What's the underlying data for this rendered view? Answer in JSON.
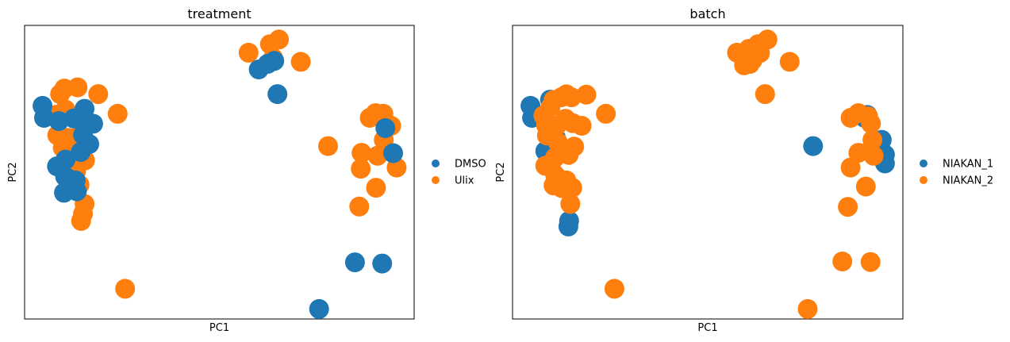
{
  "charts": [
    {
      "title": "treatment",
      "xlabel": "PC1",
      "ylabel": "PC2",
      "legend": [
        {
          "label": "DMSO",
          "color": "#1f77b4"
        },
        {
          "label": "Ulix",
          "color": "#ff7f0e"
        }
      ]
    },
    {
      "title": "batch",
      "xlabel": "PC1",
      "ylabel": "PC2",
      "legend": [
        {
          "label": "NIAKAN_1",
          "color": "#1f77b4"
        },
        {
          "label": "NIAKAN_2",
          "color": "#ff7f0e"
        }
      ]
    }
  ],
  "chart_data": [
    {
      "type": "scatter",
      "title": "treatment",
      "xlabel": "PC1",
      "ylabel": "PC2",
      "xticks": "none",
      "yticks": "none",
      "grid": false,
      "legend_position": "right",
      "xlim": [
        0,
        100
      ],
      "ylim": [
        0,
        100
      ],
      "series": [
        {
          "name": "Ulix",
          "color": "#ff7f0e",
          "points": [
            [
              57.5,
              90.7
            ],
            [
              63.0,
              93.6
            ],
            [
              65.3,
              95.2
            ],
            [
              70.9,
              87.6
            ],
            [
              63.8,
              88.9
            ],
            [
              9.1,
              76.6
            ],
            [
              10.2,
              78.5
            ],
            [
              13.6,
              78.9
            ],
            [
              18.9,
              76.6
            ],
            [
              23.9,
              69.9
            ],
            [
              8.2,
              69.6
            ],
            [
              10.5,
              71.3
            ],
            [
              14.3,
              69.0
            ],
            [
              8.4,
              62.6
            ],
            [
              11.1,
              61.7
            ],
            [
              13.8,
              62.1
            ],
            [
              9.8,
              58.3
            ],
            [
              12.7,
              55.0
            ],
            [
              15.5,
              54.0
            ],
            [
              13.2,
              50.2
            ],
            [
              11.8,
              47.1
            ],
            [
              14.1,
              45.7
            ],
            [
              15.4,
              39.2
            ],
            [
              15.0,
              35.8
            ],
            [
              14.5,
              33.4
            ],
            [
              25.8,
              10.3
            ],
            [
              77.9,
              58.9
            ],
            [
              88.6,
              68.5
            ],
            [
              90.1,
              70.1
            ],
            [
              92.1,
              69.9
            ],
            [
              94.1,
              65.8
            ],
            [
              92.2,
              61.0
            ],
            [
              86.5,
              56.6
            ],
            [
              86.3,
              51.2
            ],
            [
              90.2,
              44.7
            ],
            [
              90.6,
              55.6
            ],
            [
              95.5,
              51.6
            ],
            [
              85.9,
              38.3
            ]
          ]
        },
        {
          "name": "DMSO",
          "color": "#1f77b4",
          "points": [
            [
              60.1,
              85.0
            ],
            [
              62.4,
              86.9
            ],
            [
              64.1,
              87.9
            ],
            [
              64.9,
              76.6
            ],
            [
              4.6,
              72.6
            ],
            [
              5.0,
              68.5
            ],
            [
              8.8,
              67.4
            ],
            [
              12.6,
              68.3
            ],
            [
              15.4,
              71.6
            ],
            [
              16.0,
              66.0
            ],
            [
              17.6,
              66.5
            ],
            [
              15.0,
              62.7
            ],
            [
              16.6,
              59.6
            ],
            [
              14.4,
              56.9
            ],
            [
              8.3,
              52.0
            ],
            [
              10.4,
              48.5
            ],
            [
              13.1,
              47.2
            ],
            [
              10.5,
              54.3
            ],
            [
              11.0,
              48.0
            ],
            [
              13.4,
              43.5
            ],
            [
              10.1,
              43.0
            ],
            [
              92.6,
              65.0
            ],
            [
              94.6,
              56.5
            ],
            [
              84.8,
              19.3
            ],
            [
              91.8,
              18.9
            ],
            [
              75.6,
              3.4
            ]
          ]
        }
      ]
    },
    {
      "type": "scatter",
      "title": "batch",
      "xlabel": "PC1",
      "ylabel": "PC2",
      "xticks": "none",
      "yticks": "none",
      "grid": false,
      "legend_position": "right",
      "xlim": [
        0,
        100
      ],
      "ylim": [
        0,
        100
      ],
      "series": [
        {
          "name": "NIAKAN_1",
          "color": "#1f77b4",
          "points": [
            [
              4.6,
              72.6
            ],
            [
              5.0,
              68.5
            ],
            [
              9.6,
              74.7
            ],
            [
              11.1,
              61.7
            ],
            [
              8.4,
              57.2
            ],
            [
              9.8,
              52.6
            ],
            [
              14.5,
              33.4
            ],
            [
              14.3,
              31.5
            ],
            [
              77.0,
              58.9
            ],
            [
              90.9,
              69.5
            ],
            [
              94.6,
              61.0
            ],
            [
              95.4,
              56.0
            ],
            [
              95.4,
              53.0
            ],
            [
              90.2,
              68.5
            ]
          ]
        },
        {
          "name": "NIAKAN_2",
          "color": "#ff7f0e",
          "points": [
            [
              57.5,
              90.7
            ],
            [
              60.5,
              92.0
            ],
            [
              62.9,
              93.6
            ],
            [
              65.3,
              95.2
            ],
            [
              61.5,
              88.2
            ],
            [
              63.4,
              90.6
            ],
            [
              59.3,
              86.4
            ],
            [
              60.8,
              86.9
            ],
            [
              62.3,
              91.0
            ],
            [
              71.0,
              87.6
            ],
            [
              64.7,
              76.6
            ],
            [
              7.9,
              69.3
            ],
            [
              9.7,
              72.1
            ],
            [
              10.5,
              74.6
            ],
            [
              12.5,
              75.5
            ],
            [
              13.8,
              76.5
            ],
            [
              15.1,
              75.5
            ],
            [
              18.9,
              76.4
            ],
            [
              23.9,
              69.9
            ],
            [
              11.3,
              65.8
            ],
            [
              13.6,
              68.2
            ],
            [
              15.4,
              66.7
            ],
            [
              17.7,
              65.8
            ],
            [
              8.6,
              66.0
            ],
            [
              8.8,
              62.5
            ],
            [
              11.6,
              60.2
            ],
            [
              13.1,
              57.2
            ],
            [
              14.4,
              55.9
            ],
            [
              15.8,
              58.7
            ],
            [
              10.9,
              55.0
            ],
            [
              8.4,
              52.2
            ],
            [
              10.9,
              49.1
            ],
            [
              13.8,
              47.2
            ],
            [
              12.6,
              44.6
            ],
            [
              15.3,
              44.7
            ],
            [
              10.5,
              45.5
            ],
            [
              14.8,
              39.2
            ],
            [
              26.1,
              10.3
            ],
            [
              86.6,
              68.5
            ],
            [
              88.6,
              70.1
            ],
            [
              91.1,
              69.0
            ],
            [
              91.8,
              66.6
            ],
            [
              92.2,
              61.0
            ],
            [
              88.6,
              56.6
            ],
            [
              92.5,
              55.6
            ],
            [
              86.6,
              51.6
            ],
            [
              90.5,
              45.1
            ],
            [
              85.9,
              38.2
            ],
            [
              84.5,
              19.6
            ],
            [
              91.7,
              19.4
            ],
            [
              75.6,
              3.4
            ]
          ]
        }
      ]
    }
  ]
}
